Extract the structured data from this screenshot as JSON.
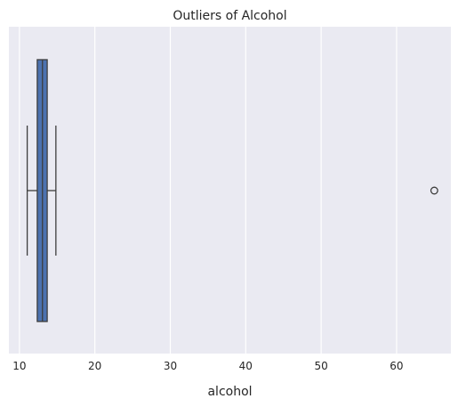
{
  "chart_data": {
    "type": "boxplot",
    "title": "Outliers of Alcohol",
    "xlabel": "alcohol",
    "ylabel": "",
    "xlim": [
      8.6,
      67.2
    ],
    "xticks": [
      10,
      20,
      30,
      40,
      50,
      60
    ],
    "xtick_labels": [
      "10",
      "20",
      "30",
      "40",
      "50",
      "60"
    ],
    "grid": true,
    "orientation": "horizontal",
    "box": {
      "whisker_low": 11.03,
      "q1": 12.36,
      "median": 13.05,
      "q3": 13.68,
      "whisker_high": 14.83
    },
    "outliers": [
      65.0
    ],
    "colors": {
      "background": "#eaeaf2",
      "grid": "#ffffff",
      "box_fill": "#4c72b0",
      "lines": "#3d3d3d"
    }
  }
}
